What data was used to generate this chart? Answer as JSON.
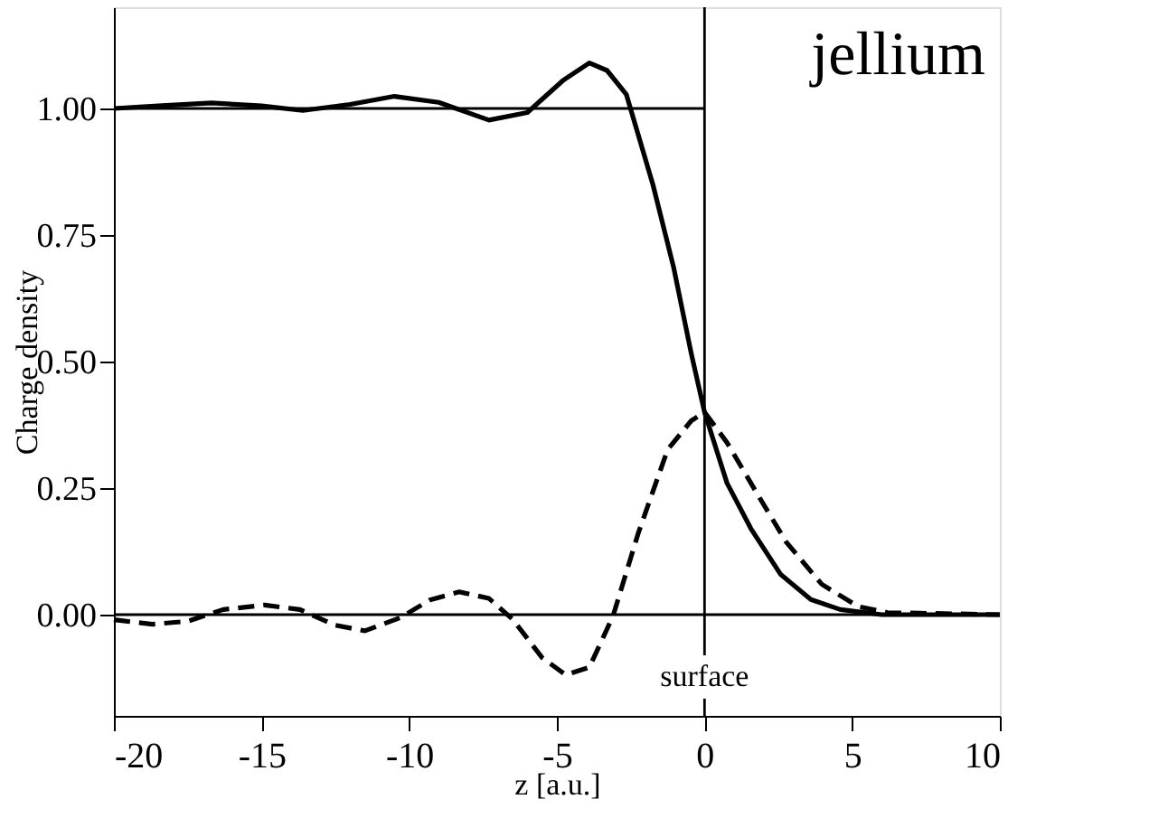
{
  "chart_data": {
    "type": "line",
    "xlabel": "z [a.u.]",
    "ylabel": "Charge density",
    "annotations": [
      "jellium"
    ],
    "xlim": [
      -20,
      10
    ],
    "xticks": [
      -20,
      -15,
      -10,
      -5,
      0,
      5,
      10
    ],
    "ylim": [
      -0.2,
      1.2
    ],
    "yticks": [
      {
        "value": 0,
        "label": "0.00"
      },
      {
        "value": 0.25,
        "label": "0.25"
      },
      {
        "value": 0.5,
        "label": "0.50"
      },
      {
        "value": 0.75,
        "label": "0.75"
      },
      {
        "value": 1,
        "label": "1.00"
      }
    ],
    "grid": false,
    "marker": "none",
    "ref_lines": [
      {
        "axis": "x",
        "value": 0,
        "label": "surface",
        "color": "#000000"
      },
      {
        "axis": "y",
        "value": 0,
        "color": "#000000"
      }
    ],
    "series": [
      {
        "color": "#000000",
        "line_style": "solid",
        "x": [
          -20,
          0
        ],
        "values": [
          1,
          1
        ]
      },
      {
        "color": "#000000",
        "line_style": "solid",
        "x": [
          -20,
          -18.5,
          -16.7,
          -15,
          -13.6,
          -12,
          -10.5,
          -9,
          -7.3,
          -6,
          -4.8,
          -3.9,
          -3.3,
          -2.65,
          -1.75,
          -1.05,
          -0.45,
          0,
          0.76,
          1.57,
          2.57,
          3.6,
          4.6,
          6,
          10
        ],
        "values": [
          1.0,
          1.005,
          1.011,
          1.005,
          0.996,
          1.008,
          1.024,
          1.012,
          0.977,
          0.992,
          1.055,
          1.09,
          1.075,
          1.028,
          0.85,
          0.687,
          0.516,
          0.4,
          0.26,
          0.17,
          0.08,
          0.03,
          0.01,
          0,
          0
        ]
      },
      {
        "color": "#000000",
        "line_style": "dashed",
        "x": [
          -20,
          -18.7,
          -17.5,
          -16.3,
          -14.9,
          -13.7,
          -12.5,
          -11.5,
          -10.3,
          -9.3,
          -8.3,
          -7.3,
          -6.5,
          -5.5,
          -4.7,
          -3.9,
          -3.1,
          -2.25,
          -1.25,
          -0.45,
          0,
          0.76,
          1.77,
          2.77,
          3.97,
          5.2,
          6.2,
          10
        ],
        "values": [
          -0.01,
          -0.019,
          -0.013,
          0.01,
          0.019,
          0.01,
          -0.021,
          -0.032,
          -0.006,
          0.029,
          0.045,
          0.032,
          -0.009,
          -0.085,
          -0.119,
          -0.104,
          -0.003,
          0.16,
          0.326,
          0.383,
          0.4,
          0.34,
          0.24,
          0.143,
          0.06,
          0.016,
          0.004,
          0
        ]
      }
    ]
  }
}
